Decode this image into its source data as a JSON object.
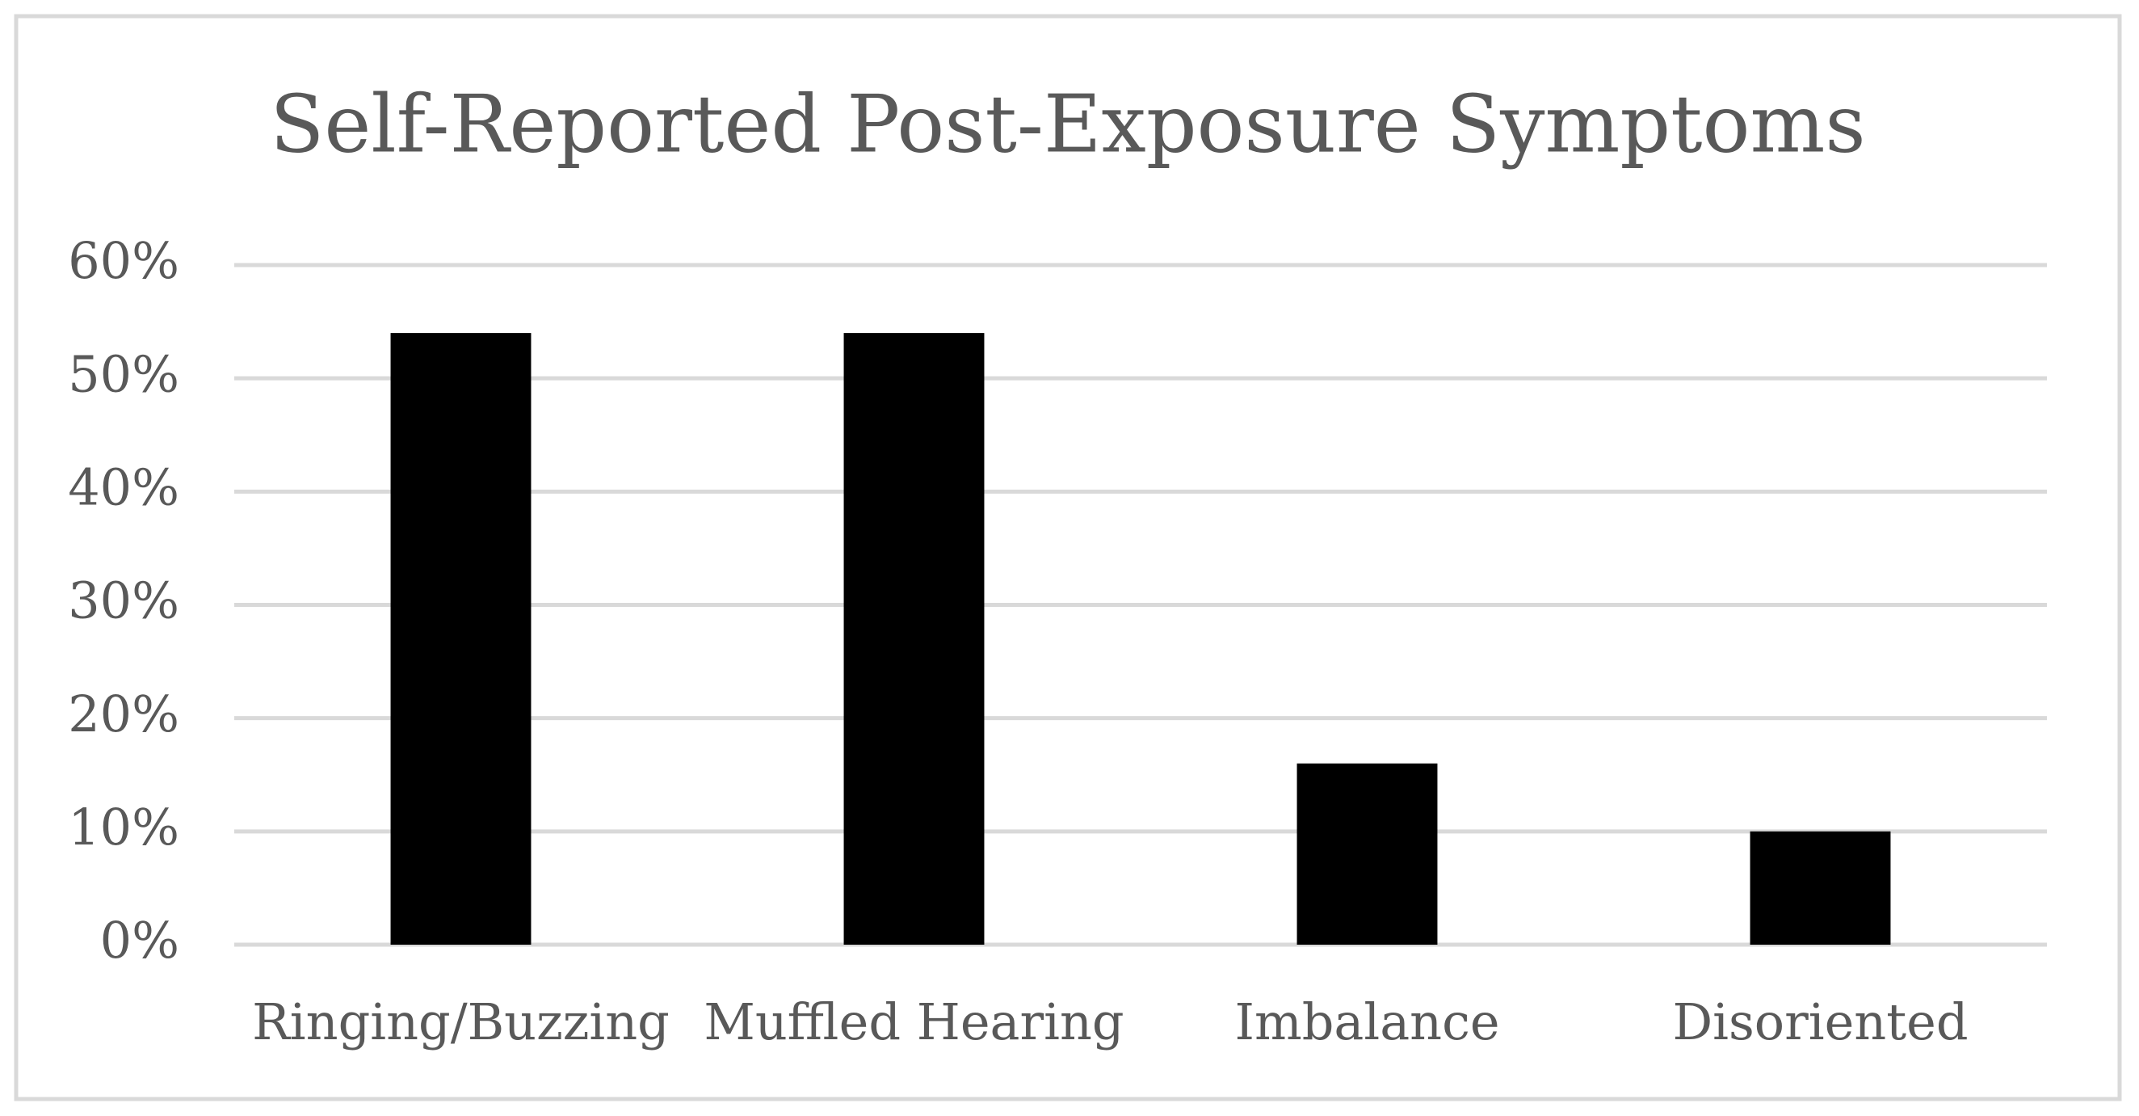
{
  "chart_data": {
    "type": "bar",
    "title": "Self-Reported Post-Exposure Symptoms",
    "categories": [
      "Ringing/Buzzing",
      "Muffled Hearing",
      "Imbalance",
      "Disoriented"
    ],
    "values": [
      54,
      54,
      16,
      10
    ],
    "color": "#000000",
    "ylim": [
      0,
      60
    ],
    "yticks": [
      {
        "value": 0,
        "label": "0%"
      },
      {
        "value": 10,
        "label": "10%"
      },
      {
        "value": 20,
        "label": "20%"
      },
      {
        "value": 30,
        "label": "30%"
      },
      {
        "value": 40,
        "label": "40%"
      },
      {
        "value": 50,
        "label": "50%"
      },
      {
        "value": 60,
        "label": "60%"
      }
    ],
    "grid": true
  }
}
